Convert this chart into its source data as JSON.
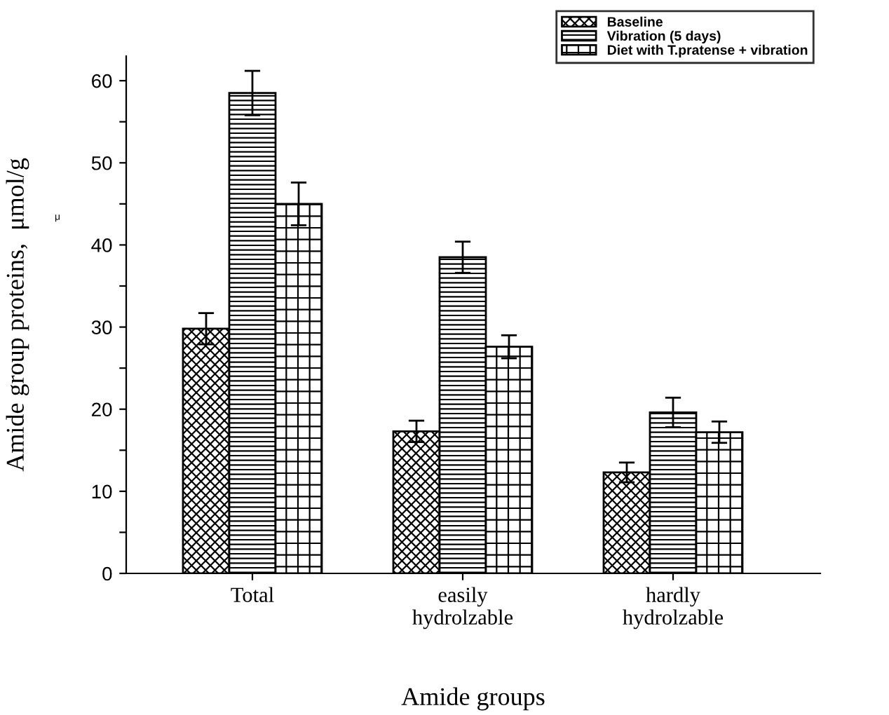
{
  "chart_data": {
    "type": "bar",
    "xlabel": "Amide groups",
    "ylabel": "Amide group proteins,  μmol/g",
    "categories": [
      "Total",
      "easily\nhydrolzable",
      "hardly\nhydrolzable"
    ],
    "series": [
      {
        "name": "Baseline",
        "color": "#000000",
        "values": [
          29.8,
          17.3,
          12.3
        ],
        "errors": [
          1.9,
          1.3,
          1.2
        ]
      },
      {
        "name": "Vibration (5 days)",
        "color": "#000000",
        "values": [
          58.5,
          38.5,
          19.6
        ],
        "errors": [
          2.7,
          1.9,
          1.8
        ]
      },
      {
        "name": "Diet with T.pratense + vibration",
        "color": "#000000",
        "values": [
          45.0,
          27.6,
          17.2
        ],
        "errors": [
          2.6,
          1.4,
          1.3
        ]
      }
    ],
    "ylim": [
      0,
      63
    ],
    "yticks": [
      0,
      {
        "value": 5,
        "label": null
      },
      10,
      {
        "value": 15,
        "label": null
      },
      20,
      {
        "value": 25,
        "label": null
      },
      30,
      {
        "value": 35,
        "label": null
      },
      40,
      {
        "value": 45,
        "label": null
      },
      50,
      {
        "value": 55,
        "label": null
      },
      60
    ],
    "annotations": [
      "μ"
    ],
    "grid": false,
    "legend": "top right"
  }
}
